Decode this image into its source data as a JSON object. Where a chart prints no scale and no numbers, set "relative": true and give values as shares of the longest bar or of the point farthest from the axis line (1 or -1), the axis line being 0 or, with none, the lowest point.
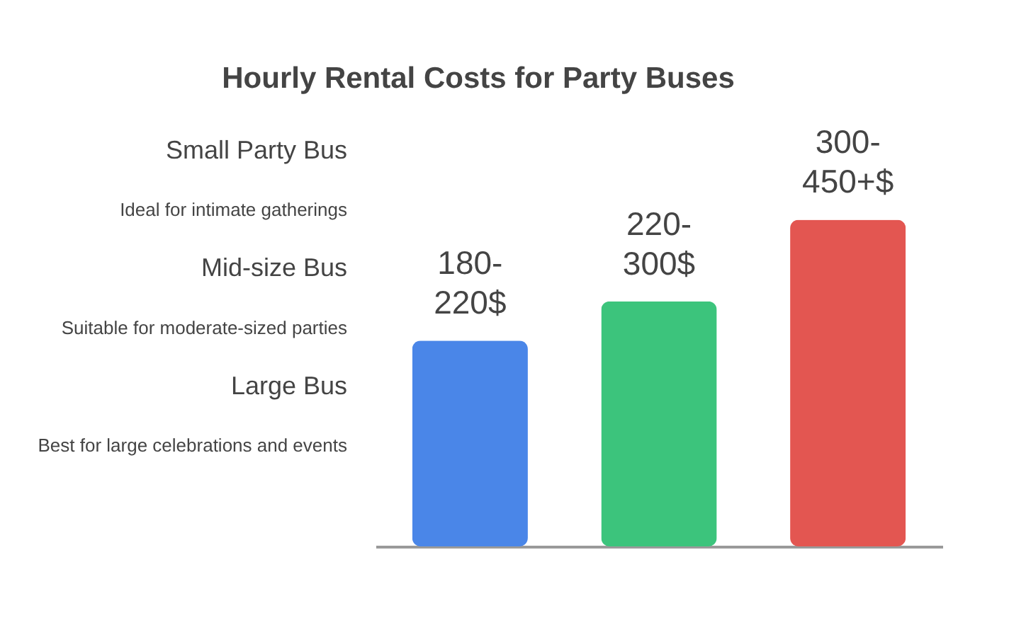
{
  "chart_data": {
    "type": "bar",
    "title": "Hourly Rental Costs for Party Buses",
    "categories": [
      null,
      null,
      null
    ],
    "values": [
      0.63,
      0.75,
      1
    ],
    "relative": true,
    "colors": [
      "#4a86e8",
      "#3cc47c",
      "#e35651"
    ],
    "annotations": [
      "Small Party Bus",
      "Ideal for intimate gatherings",
      "Mid-size Bus",
      "Suitable for moderate-sized parties",
      "Large Bus",
      "Best for large celebrations and events",
      {
        "text": "180-220$",
        "y": 0.63
      },
      {
        "text": "220-300$",
        "y": 0.75
      },
      {
        "text": "300-450+$",
        "y": 1
      }
    ],
    "tick_labels": false
  }
}
